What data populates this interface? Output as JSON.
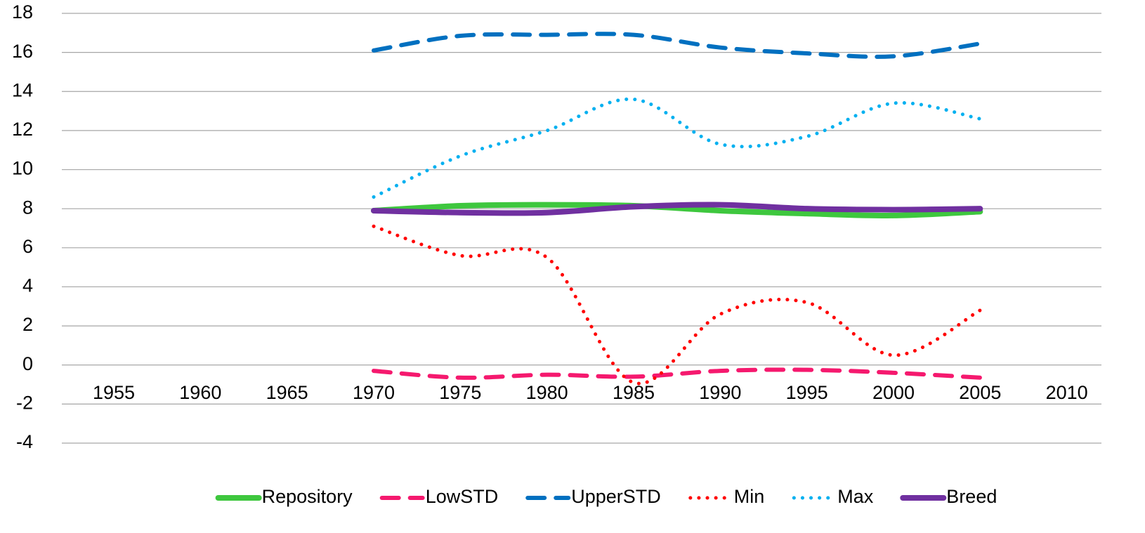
{
  "chart_data": {
    "type": "line",
    "smooth": true,
    "grid": true,
    "legend": "bottom",
    "x": [
      1970,
      1975,
      1980,
      1985,
      1990,
      1995,
      2000,
      2005
    ],
    "xlim": [
      1952,
      2012
    ],
    "xticks": [
      1955,
      1960,
      1965,
      1970,
      1975,
      1980,
      1985,
      1990,
      1995,
      2000,
      2005,
      2010
    ],
    "ylim": [
      -4,
      18
    ],
    "yticks": [
      -4,
      -2,
      0,
      2,
      4,
      6,
      8,
      10,
      12,
      14,
      16,
      18
    ],
    "series": [
      {
        "name": "Repository",
        "color": "#3ec73e",
        "dash": "solid",
        "values": [
          7.9,
          8.15,
          8.2,
          8.15,
          7.9,
          7.75,
          7.65,
          7.85
        ]
      },
      {
        "name": "LowSTD",
        "color": "#f5196e",
        "dash": "dash",
        "values": [
          -0.3,
          -0.65,
          -0.5,
          -0.6,
          -0.3,
          -0.25,
          -0.4,
          -0.65
        ]
      },
      {
        "name": "UpperSTD",
        "color": "#0070c0",
        "dash": "dash",
        "values": [
          16.1,
          16.85,
          16.9,
          16.9,
          16.25,
          15.95,
          15.8,
          16.45
        ]
      },
      {
        "name": "Min",
        "color": "#ff0000",
        "dash": "dot",
        "values": [
          7.1,
          5.6,
          5.5,
          -0.9,
          2.6,
          3.2,
          0.5,
          2.8
        ]
      },
      {
        "name": "Max",
        "color": "#00b0f0",
        "dash": "dot",
        "values": [
          8.6,
          10.7,
          12.0,
          13.6,
          11.3,
          11.7,
          13.4,
          12.6
        ]
      },
      {
        "name": "Breed",
        "color": "#7030a0",
        "dash": "solid",
        "values": [
          7.9,
          7.8,
          7.8,
          8.1,
          8.2,
          8.0,
          7.95,
          8.0
        ]
      }
    ]
  }
}
